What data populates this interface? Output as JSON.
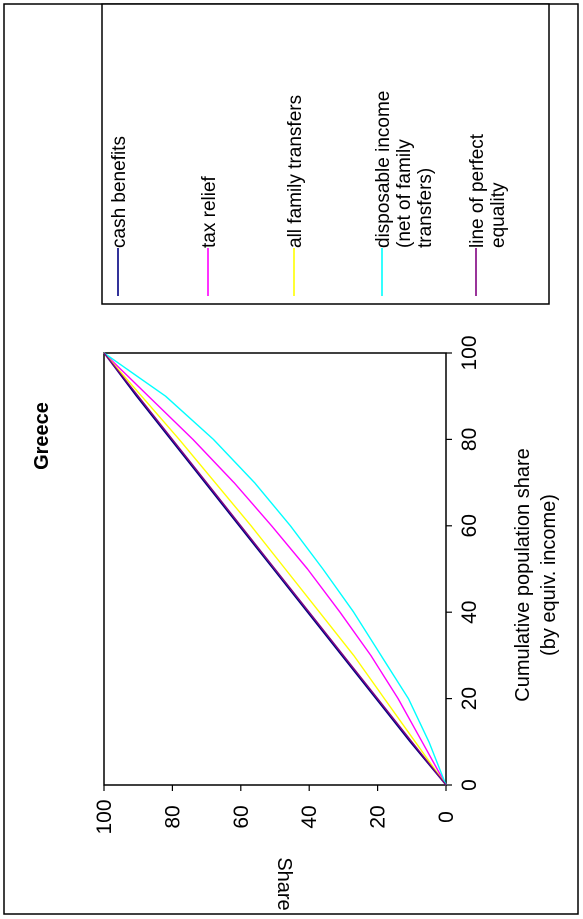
{
  "chart_data": {
    "type": "line",
    "title": "Greece",
    "xlabel": [
      "Cumulative population share",
      "(by equiv. income)"
    ],
    "ylabel": "Share",
    "xlim": [
      0,
      100
    ],
    "ylim": [
      0,
      100
    ],
    "x_ticks": [
      "0",
      "20",
      "40",
      "60",
      "80",
      "100"
    ],
    "y_ticks": [
      "0",
      "20",
      "40",
      "60",
      "80",
      "100"
    ],
    "grid": false,
    "legend_position": "right",
    "x": [
      0,
      10,
      20,
      30,
      40,
      50,
      60,
      70,
      80,
      90,
      100
    ],
    "series": [
      {
        "name": "cash benefits",
        "color": "#000080",
        "values": [
          0,
          10.5,
          20.5,
          30.5,
          40.5,
          50.5,
          60.5,
          70.5,
          80.5,
          90.5,
          100
        ]
      },
      {
        "name": "tax relief",
        "color": "#ff00ff",
        "values": [
          0,
          7,
          14,
          22,
          31,
          40.5,
          51,
          62,
          74,
          87,
          100
        ]
      },
      {
        "name": "all family transfers",
        "color": "#ffff00",
        "values": [
          0,
          9,
          18,
          27,
          37,
          47,
          57,
          67.5,
          78,
          89,
          100
        ]
      },
      {
        "name": [
          "disposable income",
          "(net of family",
          "transfers)"
        ],
        "color": "#00ffff",
        "values": [
          0,
          5,
          11,
          19,
          27,
          36,
          45.5,
          56,
          68,
          82,
          100
        ]
      },
      {
        "name": [
          "line of perfect",
          "equality"
        ],
        "color": "#800080",
        "values": [
          0,
          10,
          20,
          30,
          40,
          50,
          60,
          70,
          80,
          90,
          100
        ]
      }
    ]
  }
}
